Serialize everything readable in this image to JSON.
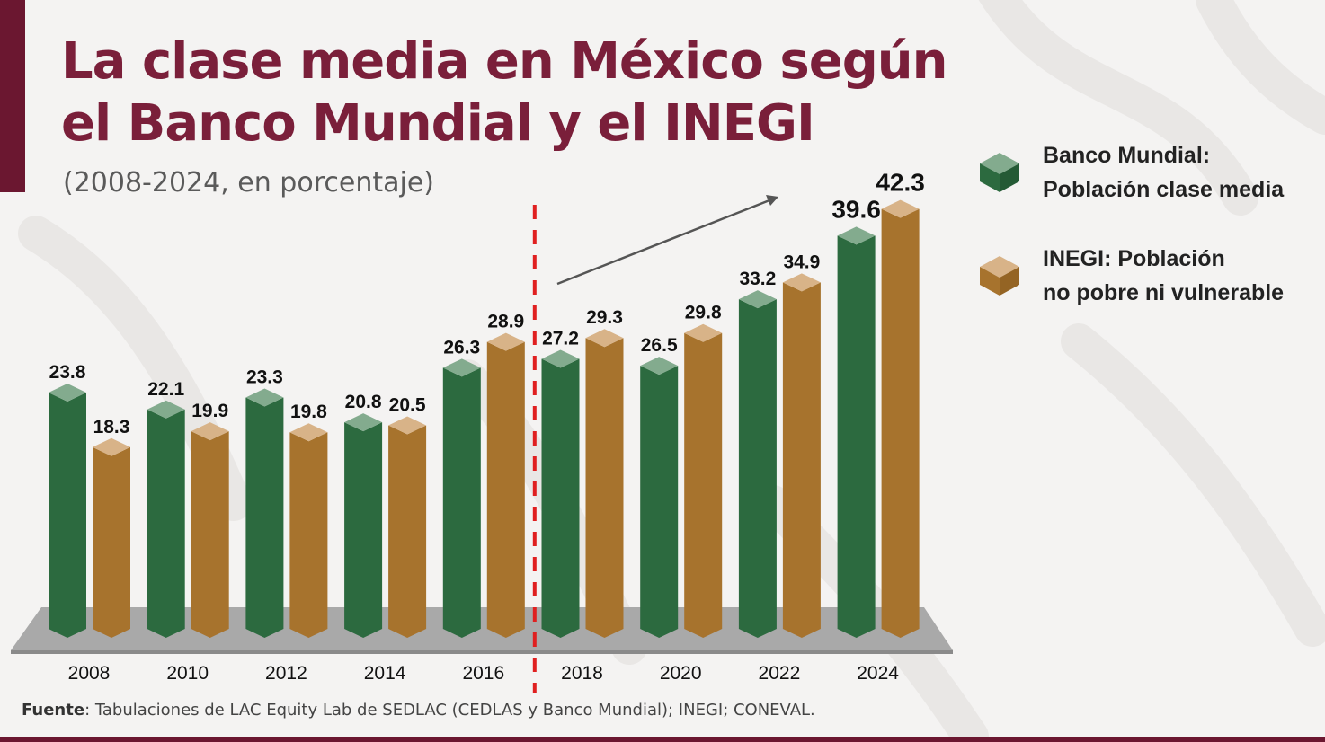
{
  "title": {
    "line1": "La clase media en México según",
    "line2": "el Banco Mundial y el INEGI"
  },
  "subtitle": "(2008-2024, en porcentaje)",
  "legend": [
    {
      "line1": "Banco Mundial:",
      "line2": "Población clase media",
      "color": "#2c6a3f"
    },
    {
      "line1": "INEGI: Población",
      "line2": "no pobre ni vulnerable",
      "color": "#a7732d"
    }
  ],
  "source": {
    "label": "Fuente",
    "text": ": Tabulaciones de LAC Equity Lab de SEDLAC (CEDLAS y Banco Mundial); INEGI; CONEVAL."
  },
  "colors": {
    "brand": "#6b1730",
    "green_front": "#2c6a3f",
    "green_top": "#83ab8e",
    "brown_front": "#a7732d",
    "brown_top": "#d8b388",
    "divider": "#e02020",
    "arrow": "#555555"
  },
  "chart_data": {
    "type": "bar",
    "categories": [
      "2008",
      "2010",
      "2012",
      "2014",
      "2016",
      "2018",
      "2020",
      "2022",
      "2024"
    ],
    "series": [
      {
        "name": "Banco Mundial: Población clase media",
        "values": [
          23.8,
          22.1,
          23.3,
          20.8,
          26.3,
          27.2,
          26.5,
          33.2,
          39.6
        ],
        "labels": [
          "23.8",
          "22.1",
          "23.3",
          "20.8",
          "26.3",
          "27.2",
          "26.5",
          "33.2",
          "39.6"
        ]
      },
      {
        "name": "INEGI: Población no pobre ni vulnerable",
        "values": [
          18.3,
          19.9,
          19.8,
          20.5,
          28.9,
          29.3,
          29.8,
          34.9,
          42.3
        ],
        "labels": [
          "18.3",
          "19.9",
          "19.8",
          "20.5",
          "28.9",
          "29.3",
          "29.8",
          "34.9",
          "42.3"
        ]
      }
    ],
    "highlight_last": true,
    "divider_between": [
      "2016",
      "2018"
    ],
    "trend_arrow": "upward from 2018 toward 2024"
  }
}
